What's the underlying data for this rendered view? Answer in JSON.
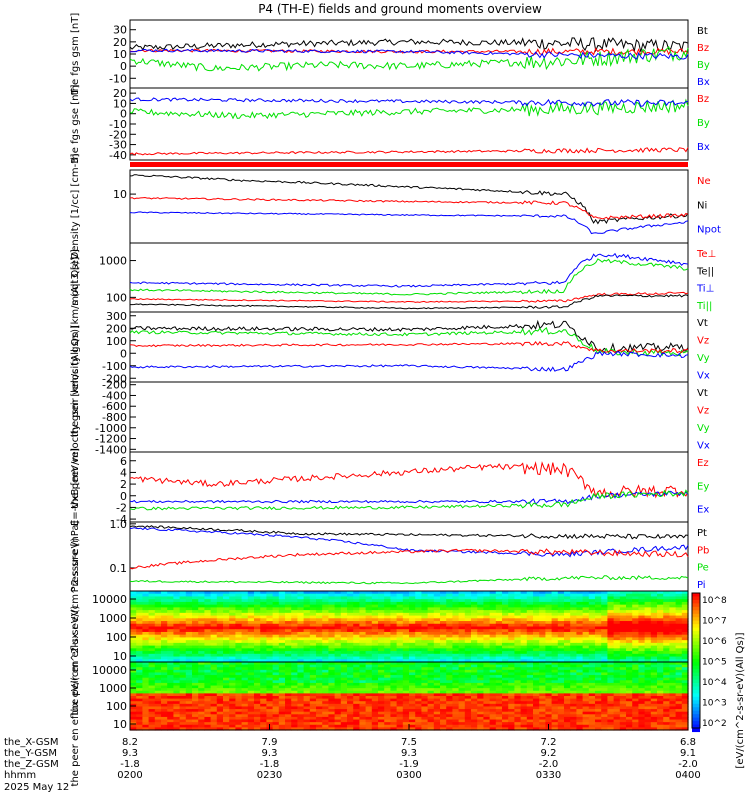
{
  "title": "P4 (TH-E) fields and ground moments overview",
  "date_label": "2025 May 12",
  "colors": {
    "black": "#000000",
    "red": "#ff0000",
    "green": "#00e000",
    "blue": "#0000ff"
  },
  "chart_data": [
    {
      "type": "line",
      "panel": "fgs_gsm",
      "ylabel": "the fgs gsm [nT]",
      "ylim": [
        -18,
        38
      ],
      "yticks": [
        "30",
        "20",
        "10",
        "0",
        "-10"
      ],
      "legend": [
        {
          "name": "Bt",
          "color": "#000000"
        },
        {
          "name": "Bz",
          "color": "#ff0000"
        },
        {
          "name": "By",
          "color": "#00e000"
        },
        {
          "name": "Bx",
          "color": "#0000ff"
        }
      ],
      "series": [
        {
          "name": "Bt",
          "color": "#000000",
          "base": 16,
          "amp": 2.5,
          "trend": [
            [
              0,
              15
            ],
            [
              0.25,
              18
            ],
            [
              0.5,
              20
            ],
            [
              0.75,
              19
            ],
            [
              1,
              16
            ]
          ]
        },
        {
          "name": "Bz",
          "color": "#ff0000",
          "base": 12,
          "amp": 1.2,
          "trend": [
            [
              0,
              13
            ],
            [
              0.5,
              12
            ],
            [
              1,
              12
            ]
          ]
        },
        {
          "name": "By",
          "color": "#00e000",
          "base": 3,
          "amp": 3,
          "trend": [
            [
              0,
              5
            ],
            [
              0.15,
              -2
            ],
            [
              0.35,
              1
            ],
            [
              0.5,
              0
            ],
            [
              0.8,
              5
            ],
            [
              1,
              12
            ]
          ]
        },
        {
          "name": "Bx",
          "color": "#0000ff",
          "base": 10,
          "amp": 1.2,
          "trend": [
            [
              0,
              13
            ],
            [
              0.5,
              12
            ],
            [
              0.8,
              9
            ],
            [
              1,
              8
            ]
          ]
        }
      ]
    },
    {
      "type": "line",
      "panel": "fgs_gse",
      "ylabel": "the fgs gse [nT]",
      "ylim": [
        -45,
        25
      ],
      "yticks": [
        "20",
        "10",
        "0",
        "-10",
        "-20",
        "-30",
        "-40"
      ],
      "legend": [
        {
          "name": "Bz",
          "color": "#ff0000"
        },
        {
          "name": "By",
          "color": "#00e000"
        },
        {
          "name": "Bx",
          "color": "#0000ff"
        }
      ],
      "series": [
        {
          "name": "Bz",
          "color": "#ff0000",
          "base": -38,
          "amp": 1,
          "trend": [
            [
              0,
              -39
            ],
            [
              0.5,
              -37
            ],
            [
              1,
              -35
            ]
          ]
        },
        {
          "name": "By",
          "color": "#00e000",
          "base": 0,
          "amp": 3,
          "trend": [
            [
              0,
              2
            ],
            [
              0.2,
              -2
            ],
            [
              0.5,
              2
            ],
            [
              0.8,
              5
            ],
            [
              1,
              8
            ]
          ]
        },
        {
          "name": "Bx",
          "color": "#0000ff",
          "base": 12,
          "amp": 1.5,
          "trend": [
            [
              0,
              14
            ],
            [
              0.5,
              12
            ],
            [
              1,
              10
            ]
          ]
        }
      ]
    },
    {
      "type": "line",
      "panel": "density",
      "ylabel": "Density [1/cc] [cm-3]",
      "ylim": [
        0.6,
        40
      ],
      "log": true,
      "yticks": [
        "10"
      ],
      "legend": [
        {
          "name": "Ne",
          "color": "#ff0000"
        },
        {
          "name": "Ni",
          "color": "#000000"
        },
        {
          "name": "Npot",
          "color": "#0000ff"
        }
      ],
      "series": [
        {
          "name": "Ni",
          "color": "#000000",
          "base": 20,
          "amp": 0.05,
          "trend": [
            [
              0,
              30
            ],
            [
              0.2,
              22
            ],
            [
              0.5,
              15
            ],
            [
              0.78,
              10
            ],
            [
              0.83,
              2
            ],
            [
              1,
              3
            ]
          ]
        },
        {
          "name": "Ne",
          "color": "#ff0000",
          "base": 7,
          "amp": 0.04,
          "trend": [
            [
              0,
              8
            ],
            [
              0.5,
              6.5
            ],
            [
              0.78,
              6
            ],
            [
              0.83,
              2.5
            ],
            [
              1,
              3
            ]
          ]
        },
        {
          "name": "Npot",
          "color": "#0000ff",
          "base": 3,
          "amp": 0.03,
          "trend": [
            [
              0,
              3.5
            ],
            [
              0.5,
              3
            ],
            [
              0.78,
              2.8
            ],
            [
              0.83,
              1
            ],
            [
              1,
              2
            ]
          ]
        }
      ]
    },
    {
      "type": "line",
      "panel": "moms_temp",
      "ylabel": "moqt3 [eV]",
      "ylim": [
        40,
        3000
      ],
      "log": true,
      "yticks": [
        "1000",
        "100"
      ],
      "legend": [
        {
          "name": "Te⊥",
          "color": "#ff0000"
        },
        {
          "name": "Te||",
          "color": "#000000"
        },
        {
          "name": "Ti⊥",
          "color": "#0000ff"
        },
        {
          "name": "Ti||",
          "color": "#00e000"
        }
      ],
      "series": [
        {
          "name": "Ti⊥",
          "color": "#0000ff",
          "base": 250,
          "amp": 0.05,
          "trend": [
            [
              0,
              250
            ],
            [
              0.5,
              200
            ],
            [
              0.78,
              250
            ],
            [
              0.84,
              1500
            ],
            [
              1,
              800
            ]
          ]
        },
        {
          "name": "Ti||",
          "color": "#00e000",
          "base": 150,
          "amp": 0.05,
          "trend": [
            [
              0,
              160
            ],
            [
              0.5,
              120
            ],
            [
              0.78,
              150
            ],
            [
              0.84,
              1000
            ],
            [
              1,
              600
            ]
          ]
        },
        {
          "name": "Te⊥",
          "color": "#ff0000",
          "base": 80,
          "amp": 0.03,
          "trend": [
            [
              0,
              90
            ],
            [
              0.5,
              75
            ],
            [
              0.78,
              80
            ],
            [
              0.84,
              120
            ],
            [
              1,
              130
            ]
          ]
        },
        {
          "name": "Te||",
          "color": "#000000",
          "base": 60,
          "amp": 0.03,
          "trend": [
            [
              0,
              65
            ],
            [
              0.5,
              50
            ],
            [
              0.78,
              55
            ],
            [
              0.84,
              110
            ],
            [
              1,
              110
            ]
          ]
        }
      ]
    },
    {
      "type": "line",
      "panel": "peir_velocity",
      "ylabel": "the peir velocity gsm [km/s (All Qs)]",
      "ylim": [
        -230,
        330
      ],
      "yticks": [
        "300",
        "200",
        "100",
        "0",
        "-100",
        "-200"
      ],
      "legend": [
        {
          "name": "Vt",
          "color": "#000000"
        },
        {
          "name": "Vz",
          "color": "#ff0000"
        },
        {
          "name": "Vy",
          "color": "#00e000"
        },
        {
          "name": "Vx",
          "color": "#0000ff"
        }
      ],
      "series": [
        {
          "name": "Vt",
          "color": "#000000",
          "base": 200,
          "amp": 15,
          "trend": [
            [
              0,
              200
            ],
            [
              0.5,
              190
            ],
            [
              0.78,
              230
            ],
            [
              0.84,
              40
            ],
            [
              1,
              50
            ]
          ]
        },
        {
          "name": "Vy",
          "color": "#00e000",
          "base": 160,
          "amp": 12,
          "trend": [
            [
              0,
              170
            ],
            [
              0.5,
              150
            ],
            [
              0.78,
              180
            ],
            [
              0.84,
              10
            ],
            [
              1,
              0
            ]
          ]
        },
        {
          "name": "Vz",
          "color": "#ff0000",
          "base": 60,
          "amp": 8,
          "trend": [
            [
              0,
              60
            ],
            [
              0.5,
              70
            ],
            [
              0.78,
              80
            ],
            [
              0.84,
              20
            ],
            [
              1,
              20
            ]
          ]
        },
        {
          "name": "Vx",
          "color": "#0000ff",
          "base": -100,
          "amp": 8,
          "trend": [
            [
              0,
              -110
            ],
            [
              0.5,
              -100
            ],
            [
              0.78,
              -130
            ],
            [
              0.84,
              0
            ],
            [
              1,
              -20
            ]
          ]
        }
      ]
    },
    {
      "type": "line",
      "panel": "peer_velocity",
      "ylabel": "the peer velocity gsm [km/s (All Qs)]",
      "ylim": [
        -1450,
        -150
      ],
      "yticks": [
        "-200",
        "-400",
        "-600",
        "-800",
        "-1000",
        "-1200",
        "-1400"
      ],
      "legend": [
        {
          "name": "Vt",
          "color": "#000000"
        },
        {
          "name": "Vz",
          "color": "#ff0000"
        },
        {
          "name": "Vy",
          "color": "#00e000"
        },
        {
          "name": "Vx",
          "color": "#0000ff"
        }
      ],
      "series": []
    },
    {
      "type": "line",
      "panel": "e_field",
      "ylabel": "E=-VxB [mV/m]",
      "ylim": [
        -4.5,
        7.5
      ],
      "yticks": [
        "6",
        "4",
        "2",
        "0",
        "-2",
        "-4"
      ],
      "legend": [
        {
          "name": "Ez",
          "color": "#ff0000"
        },
        {
          "name": "Ey",
          "color": "#00e000"
        },
        {
          "name": "Ex",
          "color": "#0000ff"
        }
      ],
      "series": [
        {
          "name": "Ez",
          "color": "#ff0000",
          "base": 3,
          "amp": 0.5,
          "trend": [
            [
              0,
              3
            ],
            [
              0.15,
              2
            ],
            [
              0.4,
              3.5
            ],
            [
              0.65,
              5
            ],
            [
              0.78,
              4.5
            ],
            [
              0.84,
              0.5
            ],
            [
              1,
              1
            ]
          ]
        },
        {
          "name": "Ex",
          "color": "#0000ff",
          "base": -1,
          "amp": 0.2,
          "trend": [
            [
              0,
              -1
            ],
            [
              0.78,
              -1
            ],
            [
              0.84,
              0
            ],
            [
              1,
              0.5
            ]
          ]
        },
        {
          "name": "Ey",
          "color": "#00e000",
          "base": -2,
          "amp": 0.25,
          "trend": [
            [
              0,
              -2.2
            ],
            [
              0.5,
              -2
            ],
            [
              0.78,
              -1.5
            ],
            [
              0.84,
              0
            ],
            [
              1,
              0.5
            ]
          ]
        }
      ]
    },
    {
      "type": "line",
      "panel": "pressure",
      "ylabel": "Pressure [nPa]",
      "ylim": [
        0.03,
        1.1
      ],
      "log": true,
      "yticks": [
        "1.0",
        "0.1"
      ],
      "legend": [
        {
          "name": "Pt",
          "color": "#000000"
        },
        {
          "name": "Pb",
          "color": "#ff0000"
        },
        {
          "name": "Pe",
          "color": "#00e000"
        },
        {
          "name": "Pi",
          "color": "#0000ff"
        }
      ],
      "series": [
        {
          "name": "Pt",
          "color": "#000000",
          "base": 0.7,
          "amp": 0.05,
          "trend": [
            [
              0,
              0.9
            ],
            [
              0.3,
              0.6
            ],
            [
              0.6,
              0.55
            ],
            [
              1,
              0.5
            ]
          ]
        },
        {
          "name": "Pi",
          "color": "#0000ff",
          "base": 0.5,
          "amp": 0.05,
          "trend": [
            [
              0,
              0.8
            ],
            [
              0.3,
              0.5
            ],
            [
              0.5,
              0.25
            ],
            [
              0.78,
              0.2
            ],
            [
              1,
              0.3
            ]
          ]
        },
        {
          "name": "Pb",
          "color": "#ff0000",
          "base": 0.15,
          "amp": 0.06,
          "trend": [
            [
              0,
              0.1
            ],
            [
              0.3,
              0.2
            ],
            [
              0.6,
              0.25
            ],
            [
              1,
              0.2
            ]
          ]
        },
        {
          "name": "Pe",
          "color": "#00e000",
          "base": 0.05,
          "amp": 0.04,
          "trend": [
            [
              0,
              0.05
            ],
            [
              0.5,
              0.045
            ],
            [
              0.8,
              0.06
            ],
            [
              1,
              0.06
            ]
          ]
        }
      ]
    },
    {
      "type": "heatmap",
      "panel": "peir_en_eflux",
      "ylabel": "the peir en eflux eV/(cm^2-s-sr-eV)",
      "yticks": [
        "10000",
        "1000",
        "100",
        "10"
      ]
    },
    {
      "type": "heatmap",
      "panel": "peer_en_eflux",
      "ylabel": "the peer en eflux eV/(cm^2-s-sr-eV)",
      "yticks": [
        "10000",
        "1000",
        "100",
        "10"
      ]
    }
  ],
  "colorbar": {
    "ticks": [
      "10^8",
      "10^7",
      "10^6",
      "10^5",
      "10^4",
      "10^3",
      "10^2"
    ],
    "label": "[eV/(cm^2-s-sr-eV)(All Qs)]"
  },
  "xaxis": {
    "row_labels": [
      "the_X-GSM",
      "the_Y-GSM",
      "the_Z-GSM",
      "hhmm",
      "2025 May 12"
    ],
    "ticks": [
      {
        "x": "8.2",
        "y": "9.3",
        "z": "-1.8",
        "t": "0200"
      },
      {
        "x": "7.9",
        "y": "9.3",
        "z": "-1.8",
        "t": "0230"
      },
      {
        "x": "7.5",
        "y": "9.3",
        "z": "-1.9",
        "t": "0300"
      },
      {
        "x": "7.2",
        "y": "9.2",
        "z": "-2.0",
        "t": "0330"
      },
      {
        "x": "6.8",
        "y": "9.1",
        "z": "-2.0",
        "t": "0400"
      }
    ]
  }
}
